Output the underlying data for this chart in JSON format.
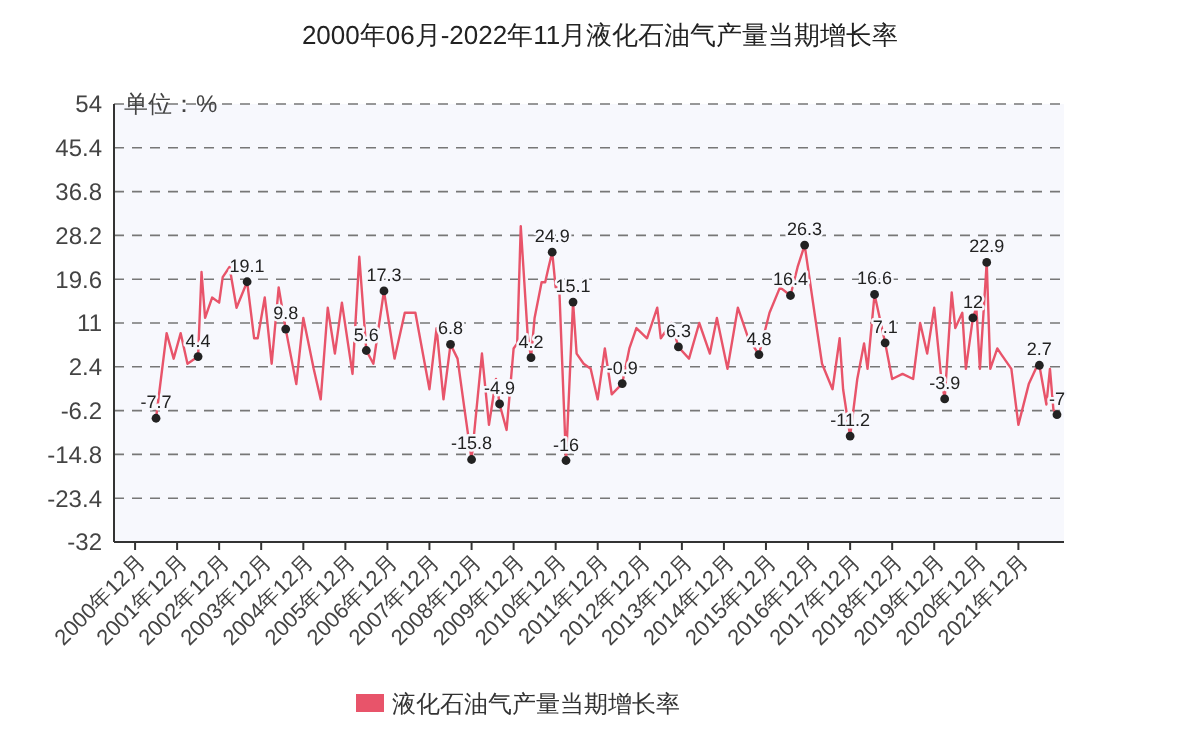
{
  "chart_data": {
    "type": "line",
    "title": "2000年06月-2022年11月液化石油气产量当期增长率",
    "ylabel": "单位：%",
    "xlim": [
      "2000-06",
      "2023-01"
    ],
    "ylim": [
      -32,
      54
    ],
    "yticks": [
      54,
      45.4,
      36.8,
      28.2,
      19.6,
      11,
      2.4,
      -6.2,
      -14.8,
      -23.4,
      -32
    ],
    "xticks": [
      {
        "value": "2000-12",
        "label": "2000年12月"
      },
      {
        "value": "2001-12",
        "label": "2001年12月"
      },
      {
        "value": "2002-12",
        "label": "2002年12月"
      },
      {
        "value": "2003-12",
        "label": "2003年12月"
      },
      {
        "value": "2004-12",
        "label": "2004年12月"
      },
      {
        "value": "2005-12",
        "label": "2005年12月"
      },
      {
        "value": "2006-12",
        "label": "2006年12月"
      },
      {
        "value": "2007-12",
        "label": "2007年12月"
      },
      {
        "value": "2008-12",
        "label": "2008年12月"
      },
      {
        "value": "2009-12",
        "label": "2009年12月"
      },
      {
        "value": "2010-12",
        "label": "2010年12月"
      },
      {
        "value": "2011-12",
        "label": "2011年12月"
      },
      {
        "value": "2012-12",
        "label": "2012年12月"
      },
      {
        "value": "2013-12",
        "label": "2013年12月"
      },
      {
        "value": "2014-12",
        "label": "2014年12月"
      },
      {
        "value": "2015-12",
        "label": "2015年12月"
      },
      {
        "value": "2016-12",
        "label": "2016年12月"
      },
      {
        "value": "2017-12",
        "label": "2017年12月"
      },
      {
        "value": "2018-12",
        "label": "2018年12月"
      },
      {
        "value": "2019-12",
        "label": "2019年12月"
      },
      {
        "value": "2020-12",
        "label": "2020年12月"
      },
      {
        "value": "2021-12",
        "label": "2021年12月"
      }
    ],
    "grid": "y",
    "legend": "bottom",
    "line_style": "solid",
    "series": [
      {
        "name": "液化石油气产量当期增长率",
        "color": "#e8546a",
        "x": [
          "2001-06",
          "2001-09",
          "2001-11",
          "2002-01",
          "2002-03",
          "2002-06",
          "2002-07",
          "2002-08",
          "2002-10",
          "2002-12",
          "2003-01",
          "2003-03",
          "2003-05",
          "2003-08",
          "2003-10",
          "2003-11",
          "2004-01",
          "2004-03",
          "2004-05",
          "2004-07",
          "2004-10",
          "2004-12",
          "2005-03",
          "2005-05",
          "2005-07",
          "2005-09",
          "2005-11",
          "2006-02",
          "2006-04",
          "2006-06",
          "2006-08",
          "2006-11",
          "2007-02",
          "2007-05",
          "2007-08",
          "2007-12",
          "2008-02",
          "2008-04",
          "2008-06",
          "2008-08",
          "2008-10",
          "2008-12",
          "2009-03",
          "2009-05",
          "2009-07",
          "2009-08",
          "2009-10",
          "2009-12",
          "2010-01",
          "2010-02",
          "2010-04",
          "2010-05",
          "2010-06",
          "2010-08",
          "2010-09",
          "2010-10",
          "2010-11",
          "2010-12",
          "2011-01",
          "2011-03",
          "2011-05",
          "2011-06",
          "2011-08",
          "2011-10",
          "2011-12",
          "2012-02",
          "2012-04",
          "2012-07",
          "2012-09",
          "2012-11",
          "2013-02",
          "2013-05",
          "2013-06",
          "2013-09",
          "2013-11",
          "2014-02",
          "2014-05",
          "2014-08",
          "2014-10",
          "2015-01",
          "2015-04",
          "2015-07",
          "2015-10",
          "2016-01",
          "2016-04",
          "2016-07",
          "2016-09",
          "2016-11",
          "2017-02",
          "2017-04",
          "2017-07",
          "2017-09",
          "2017-10",
          "2017-12",
          "2018-02",
          "2018-04",
          "2018-05",
          "2018-07",
          "2018-10",
          "2018-12",
          "2019-03",
          "2019-06",
          "2019-08",
          "2019-10",
          "2019-12",
          "2020-02",
          "2020-03",
          "2020-05",
          "2020-06",
          "2020-08",
          "2020-09",
          "2020-11",
          "2020-12",
          "2021-01",
          "2021-03",
          "2021-04",
          "2021-06",
          "2021-07",
          "2021-10",
          "2021-12",
          "2022-03",
          "2022-05",
          "2022-06",
          "2022-08",
          "2022-09",
          "2022-10",
          "2022-11"
        ],
        "values": [
          -7.7,
          9,
          4,
          9,
          3,
          4.4,
          21,
          12,
          16,
          15,
          20,
          22,
          14,
          19.1,
          8,
          8,
          16,
          3,
          18,
          9.8,
          -1,
          12,
          2,
          -4,
          14,
          5,
          15,
          1,
          24,
          5.6,
          3,
          17.3,
          4,
          13,
          13,
          -2,
          10,
          -4,
          6.8,
          4,
          -6,
          -15.8,
          5,
          -9,
          0,
          -4.9,
          -10,
          6,
          7,
          30,
          9,
          4.2,
          12,
          19,
          19,
          22,
          24.9,
          18,
          18,
          -16,
          15.1,
          5,
          3,
          2,
          -4,
          6,
          -3,
          -0.9,
          6,
          10,
          8,
          14,
          8,
          11,
          6.3,
          4,
          11,
          5,
          12,
          2,
          14,
          8,
          4.8,
          13,
          18,
          16.4,
          22,
          26.3,
          12,
          3,
          -2,
          8,
          -2,
          -11.2,
          0,
          7,
          2,
          16.6,
          7.1,
          0,
          1,
          0,
          11,
          5,
          14,
          0,
          -3.9,
          17,
          10,
          13,
          2,
          12,
          14,
          2,
          22.9,
          2,
          6,
          5,
          2,
          -9,
          -1,
          2,
          2.7,
          -5,
          2,
          -6,
          -7
        ],
        "value_labels": [
          "-7.7",
          null,
          null,
          null,
          null,
          "4.4",
          null,
          null,
          null,
          null,
          null,
          null,
          null,
          "19.1",
          null,
          null,
          null,
          null,
          null,
          "9.8",
          null,
          null,
          null,
          null,
          null,
          null,
          null,
          null,
          null,
          "5.6",
          null,
          "17.3",
          null,
          null,
          null,
          null,
          null,
          null,
          "6.8",
          null,
          null,
          "-15.8",
          null,
          null,
          null,
          "-4.9",
          null,
          null,
          null,
          null,
          null,
          "4.2",
          null,
          null,
          null,
          null,
          "24.9",
          null,
          null,
          "-16",
          "15.1",
          null,
          null,
          null,
          null,
          null,
          null,
          "-0.9",
          null,
          null,
          null,
          null,
          null,
          null,
          "6.3",
          null,
          null,
          null,
          null,
          null,
          null,
          null,
          "4.8",
          null,
          null,
          "16.4",
          null,
          "26.3",
          null,
          null,
          null,
          null,
          null,
          "-11.2",
          null,
          null,
          null,
          "16.6",
          "7.1",
          null,
          null,
          null,
          null,
          null,
          null,
          null,
          "-3.9",
          null,
          null,
          null,
          null,
          "12",
          null,
          null,
          "22.9",
          null,
          null,
          null,
          null,
          null,
          null,
          null,
          "2.7",
          null,
          null,
          null,
          "-7"
        ]
      }
    ]
  }
}
